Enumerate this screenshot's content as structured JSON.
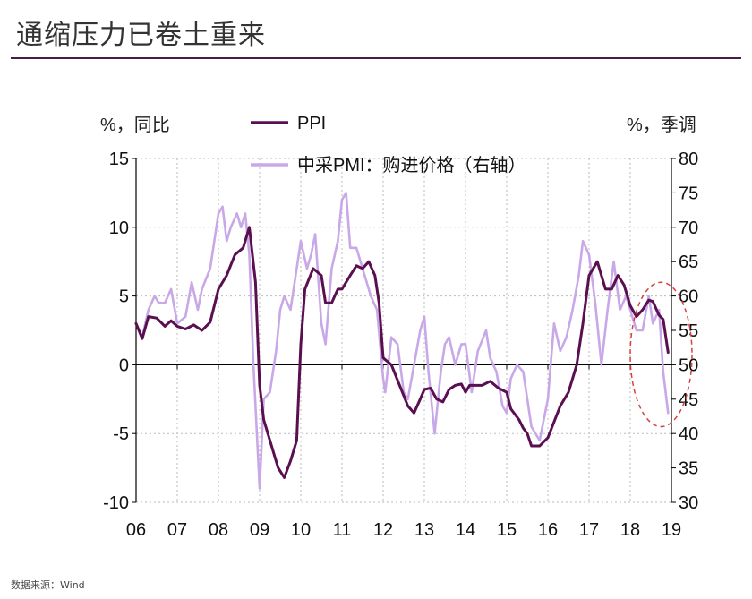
{
  "page_title": "通缩压力已卷土重来",
  "source_note": "数据来源：Wind",
  "chart_data": {
    "type": "line",
    "title": "通缩压力已卷土重来",
    "left_axis": {
      "label": "%，同比",
      "range": [
        -10,
        15
      ],
      "ticks": [
        -10,
        -5,
        0,
        5,
        10,
        15
      ]
    },
    "right_axis": {
      "label": "%，季调",
      "range": [
        30,
        80
      ],
      "ticks": [
        30,
        35,
        40,
        45,
        50,
        55,
        60,
        65,
        70,
        75,
        80
      ]
    },
    "x_range": [
      2006.0,
      2019.0
    ],
    "x_tick_labels": [
      "06",
      "07",
      "08",
      "09",
      "10",
      "11",
      "12",
      "13",
      "14",
      "15",
      "16",
      "17",
      "18",
      "19"
    ],
    "x_tick_values": [
      2006,
      2007,
      2008,
      2009,
      2010,
      2011,
      2012,
      2013,
      2014,
      2015,
      2016,
      2017,
      2018,
      2019
    ],
    "grid": true,
    "series": [
      {
        "name": "PPI",
        "axis": "left",
        "color": "#5a1050",
        "points": [
          [
            2006.0,
            3.0
          ],
          [
            2006.15,
            1.9
          ],
          [
            2006.3,
            3.5
          ],
          [
            2006.5,
            3.4
          ],
          [
            2006.7,
            2.8
          ],
          [
            2006.85,
            3.2
          ],
          [
            2007.0,
            2.8
          ],
          [
            2007.2,
            2.6
          ],
          [
            2007.4,
            2.9
          ],
          [
            2007.6,
            2.5
          ],
          [
            2007.8,
            3.1
          ],
          [
            2008.0,
            5.5
          ],
          [
            2008.2,
            6.5
          ],
          [
            2008.4,
            8.0
          ],
          [
            2008.6,
            8.5
          ],
          [
            2008.75,
            10.0
          ],
          [
            2008.9,
            6.0
          ],
          [
            2009.0,
            -1.5
          ],
          [
            2009.1,
            -4.0
          ],
          [
            2009.3,
            -6.0
          ],
          [
            2009.45,
            -7.5
          ],
          [
            2009.6,
            -8.2
          ],
          [
            2009.75,
            -7.0
          ],
          [
            2009.9,
            -5.5
          ],
          [
            2010.0,
            1.5
          ],
          [
            2010.1,
            5.5
          ],
          [
            2010.3,
            7.0
          ],
          [
            2010.5,
            6.5
          ],
          [
            2010.6,
            4.5
          ],
          [
            2010.75,
            4.5
          ],
          [
            2010.9,
            5.5
          ],
          [
            2011.0,
            5.5
          ],
          [
            2011.2,
            6.5
          ],
          [
            2011.35,
            7.2
          ],
          [
            2011.5,
            7.0
          ],
          [
            2011.65,
            7.5
          ],
          [
            2011.8,
            6.5
          ],
          [
            2011.9,
            4.5
          ],
          [
            2012.0,
            0.5
          ],
          [
            2012.2,
            0.0
          ],
          [
            2012.4,
            -1.5
          ],
          [
            2012.6,
            -3.0
          ],
          [
            2012.75,
            -3.5
          ],
          [
            2012.9,
            -2.5
          ],
          [
            2013.0,
            -1.8
          ],
          [
            2013.15,
            -1.7
          ],
          [
            2013.3,
            -2.5
          ],
          [
            2013.45,
            -2.7
          ],
          [
            2013.6,
            -1.8
          ],
          [
            2013.75,
            -1.5
          ],
          [
            2013.9,
            -1.4
          ],
          [
            2014.0,
            -2.0
          ],
          [
            2014.1,
            -1.5
          ],
          [
            2014.4,
            -1.5
          ],
          [
            2014.6,
            -1.2
          ],
          [
            2014.8,
            -1.7
          ],
          [
            2015.0,
            -2.0
          ],
          [
            2015.1,
            -3.2
          ],
          [
            2015.3,
            -4.0
          ],
          [
            2015.4,
            -4.6
          ],
          [
            2015.5,
            -5.0
          ],
          [
            2015.6,
            -5.9
          ],
          [
            2015.8,
            -5.9
          ],
          [
            2016.0,
            -5.3
          ],
          [
            2016.3,
            -3.0
          ],
          [
            2016.5,
            -2.0
          ],
          [
            2016.7,
            0.0
          ],
          [
            2016.85,
            3.0
          ],
          [
            2017.0,
            6.5
          ],
          [
            2017.2,
            7.5
          ],
          [
            2017.4,
            5.5
          ],
          [
            2017.55,
            5.5
          ],
          [
            2017.7,
            6.5
          ],
          [
            2017.85,
            5.8
          ],
          [
            2018.0,
            4.3
          ],
          [
            2018.15,
            3.5
          ],
          [
            2018.3,
            4.0
          ],
          [
            2018.45,
            4.7
          ],
          [
            2018.55,
            4.6
          ],
          [
            2018.7,
            3.6
          ],
          [
            2018.8,
            3.3
          ],
          [
            2018.92,
            0.9
          ]
        ]
      },
      {
        "name": "中采PMI：购进价格（右轴）",
        "axis": "right",
        "color": "#c9a8e8",
        "points": [
          [
            2006.0,
            56
          ],
          [
            2006.15,
            54
          ],
          [
            2006.3,
            58
          ],
          [
            2006.45,
            60
          ],
          [
            2006.55,
            59
          ],
          [
            2006.7,
            59
          ],
          [
            2006.85,
            61
          ],
          [
            2007.0,
            56
          ],
          [
            2007.2,
            57
          ],
          [
            2007.35,
            62
          ],
          [
            2007.5,
            58
          ],
          [
            2007.6,
            61
          ],
          [
            2007.8,
            64
          ],
          [
            2008.0,
            72
          ],
          [
            2008.1,
            73
          ],
          [
            2008.2,
            68
          ],
          [
            2008.3,
            70
          ],
          [
            2008.45,
            72
          ],
          [
            2008.55,
            70
          ],
          [
            2008.65,
            72
          ],
          [
            2008.75,
            66
          ],
          [
            2008.85,
            50
          ],
          [
            2009.0,
            32
          ],
          [
            2009.1,
            45
          ],
          [
            2009.25,
            46
          ],
          [
            2009.4,
            52
          ],
          [
            2009.5,
            58
          ],
          [
            2009.6,
            60
          ],
          [
            2009.75,
            58
          ],
          [
            2009.9,
            64
          ],
          [
            2010.0,
            68
          ],
          [
            2010.15,
            64
          ],
          [
            2010.25,
            66
          ],
          [
            2010.35,
            69
          ],
          [
            2010.5,
            56
          ],
          [
            2010.6,
            53
          ],
          [
            2010.75,
            64
          ],
          [
            2010.9,
            68
          ],
          [
            2011.0,
            74
          ],
          [
            2011.1,
            75
          ],
          [
            2011.2,
            67
          ],
          [
            2011.35,
            67
          ],
          [
            2011.5,
            64
          ],
          [
            2011.7,
            60
          ],
          [
            2011.85,
            58
          ],
          [
            2012.0,
            48
          ],
          [
            2012.05,
            46
          ],
          [
            2012.2,
            54
          ],
          [
            2012.35,
            53
          ],
          [
            2012.5,
            46
          ],
          [
            2012.6,
            45
          ],
          [
            2012.75,
            50
          ],
          [
            2012.9,
            55
          ],
          [
            2013.0,
            57
          ],
          [
            2013.1,
            49
          ],
          [
            2013.25,
            40
          ],
          [
            2013.4,
            49
          ],
          [
            2013.5,
            53
          ],
          [
            2013.6,
            54
          ],
          [
            2013.75,
            50
          ],
          [
            2013.9,
            53
          ],
          [
            2014.0,
            53
          ],
          [
            2014.15,
            46
          ],
          [
            2014.3,
            52
          ],
          [
            2014.5,
            55
          ],
          [
            2014.6,
            51
          ],
          [
            2014.75,
            49
          ],
          [
            2014.9,
            44
          ],
          [
            2015.0,
            43
          ],
          [
            2015.1,
            48
          ],
          [
            2015.25,
            50
          ],
          [
            2015.4,
            49
          ],
          [
            2015.5,
            45
          ],
          [
            2015.6,
            41
          ],
          [
            2015.8,
            39
          ],
          [
            2016.0,
            45
          ],
          [
            2016.15,
            56
          ],
          [
            2016.3,
            52
          ],
          [
            2016.45,
            54
          ],
          [
            2016.6,
            58
          ],
          [
            2016.75,
            63
          ],
          [
            2016.85,
            68
          ],
          [
            2017.0,
            66
          ],
          [
            2017.15,
            59
          ],
          [
            2017.3,
            50
          ],
          [
            2017.45,
            58
          ],
          [
            2017.6,
            65
          ],
          [
            2017.75,
            58
          ],
          [
            2017.9,
            60
          ],
          [
            2018.0,
            58
          ],
          [
            2018.15,
            55
          ],
          [
            2018.3,
            55
          ],
          [
            2018.45,
            60
          ],
          [
            2018.55,
            56
          ],
          [
            2018.7,
            58
          ],
          [
            2018.8,
            49
          ],
          [
            2018.92,
            43
          ]
        ]
      }
    ],
    "annotation": {
      "type": "ellipse",
      "color": "#d94040",
      "style": "dashed",
      "x_range": [
        2018.0,
        2019.5
      ],
      "y_range_left": [
        -4.5,
        6.0
      ]
    }
  }
}
